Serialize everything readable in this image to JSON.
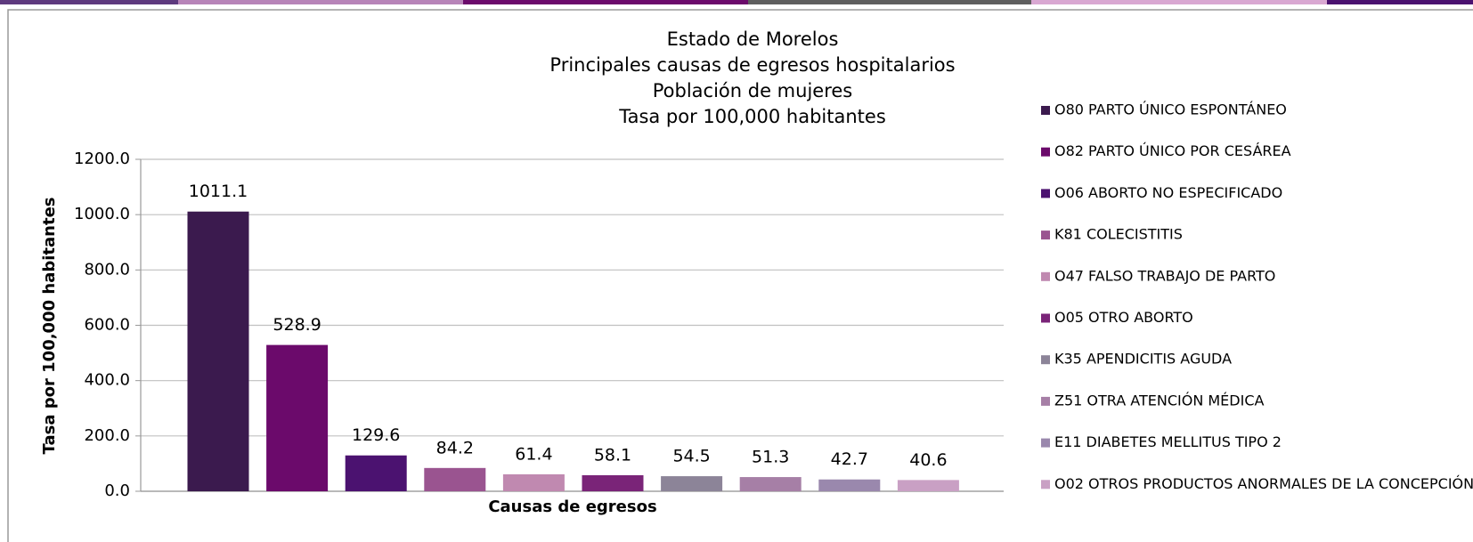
{
  "chart_data": {
    "type": "bar",
    "title": [
      "Estado de Morelos",
      "Principales causas de egresos hospitalarios",
      "Población de mujeres",
      "Tasa por 100,000 habitantes"
    ],
    "x_label": "Causas de egresos",
    "y_label": "Tasa por 100,000 habitantes",
    "ylim": [
      0,
      1200
    ],
    "yticks": [
      {
        "value": 0,
        "label": "0.0"
      },
      {
        "value": 200,
        "label": "200.0"
      },
      {
        "value": 400,
        "label": "400.0"
      },
      {
        "value": 600,
        "label": "600.0"
      },
      {
        "value": 800,
        "label": "800.0"
      },
      {
        "value": 1000,
        "label": "1000.0"
      },
      {
        "value": 1200,
        "label": "1200.0"
      }
    ],
    "grid": true,
    "legend": "right",
    "series": [
      {
        "name": "O80 PARTO ÚNICO ESPONTÁNEO",
        "color": "#3b1a4e",
        "values": [
          1011.1
        ]
      },
      {
        "name": "O82 PARTO ÚNICO POR CESÁREA",
        "color": "#6b0a6b",
        "values": [
          528.9
        ]
      },
      {
        "name": "O06 ABORTO NO ESPECIFICADO",
        "color": "#4b1270",
        "values": [
          129.6
        ]
      },
      {
        "name": "K81 COLECISTITIS",
        "color": "#9a5490",
        "values": [
          84.2
        ]
      },
      {
        "name": "O47 FALSO TRABAJO DE PARTO",
        "color": "#c089b0",
        "values": [
          61.4
        ]
      },
      {
        "name": "O05 OTRO ABORTO",
        "color": "#7a2478",
        "values": [
          58.1
        ]
      },
      {
        "name": "K35 APENDICITIS AGUDA",
        "color": "#8c8498",
        "values": [
          54.5
        ]
      },
      {
        "name": "Z51 OTRA ATENCIÓN MÉDICA",
        "color": "#a67fa6",
        "values": [
          51.3
        ]
      },
      {
        "name": "E11 DIABETES MELLITUS TIPO 2",
        "color": "#9a88ad",
        "values": [
          42.7
        ]
      },
      {
        "name": "O02 OTROS PRODUCTOS ANORMALES DE LA CONCEPCIÓN",
        "color": "#c9a0c4",
        "values": [
          40.6
        ]
      }
    ]
  }
}
